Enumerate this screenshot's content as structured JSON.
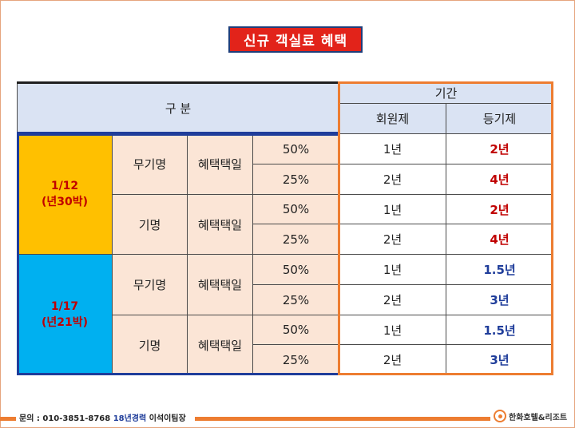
{
  "title": "신규 객실료 혜택",
  "table": {
    "header_category": "구 분",
    "header_period": "기간",
    "header_member": "회원제",
    "header_registered": "등기제",
    "groups": [
      {
        "label_line1": "1/12",
        "label_line2": "(년30박)",
        "subgroups": [
          {
            "type": "무기명",
            "benefit": "혜택택일",
            "rows": [
              {
                "discount": "50%",
                "member": "1년",
                "registered": "2년"
              },
              {
                "discount": "25%",
                "member": "2년",
                "registered": "4년"
              }
            ]
          },
          {
            "type": "기명",
            "benefit": "혜택택일",
            "rows": [
              {
                "discount": "50%",
                "member": "1년",
                "registered": "2년"
              },
              {
                "discount": "25%",
                "member": "2년",
                "registered": "4년"
              }
            ]
          }
        ]
      },
      {
        "label_line1": "1/17",
        "label_line2": "(년21박)",
        "subgroups": [
          {
            "type": "무기명",
            "benefit": "혜택택일",
            "rows": [
              {
                "discount": "50%",
                "member": "1년",
                "registered": "1.5년"
              },
              {
                "discount": "25%",
                "member": "2년",
                "registered": "3년"
              }
            ]
          },
          {
            "type": "기명",
            "benefit": "혜택택일",
            "rows": [
              {
                "discount": "50%",
                "member": "1년",
                "registered": "1.5년"
              },
              {
                "discount": "25%",
                "member": "2년",
                "registered": "3년"
              }
            ]
          }
        ]
      }
    ]
  },
  "footer": {
    "contact_prefix": "문의 : 010-3851-8768 ",
    "experience": "18년경력",
    "contact_name": " 이석이팀장",
    "logo_text": "한화호텔&리조트"
  },
  "colors": {
    "title_bg": "#e2231a",
    "group1_bg": "#ffc000",
    "group2_bg": "#00b0f0",
    "accent_orange": "#ed7d31",
    "accent_blue": "#1f3d9a"
  }
}
